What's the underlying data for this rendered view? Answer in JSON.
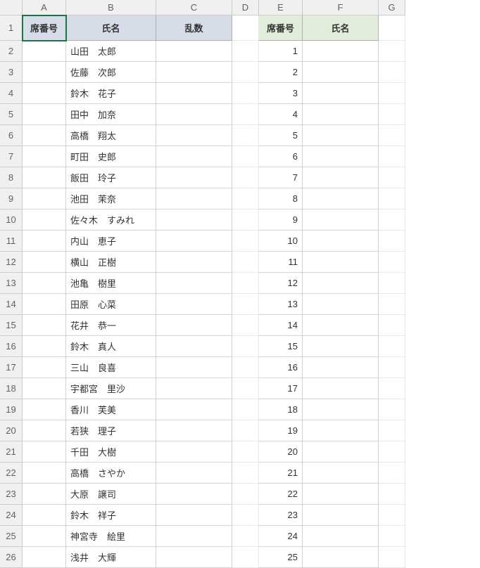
{
  "columns": [
    "A",
    "B",
    "C",
    "D",
    "E",
    "F",
    "G"
  ],
  "rowCount": 26,
  "colors": {
    "hdr1_bg": "#d6dce8",
    "hdr2_bg": "#e1edda",
    "grid_border": "#d4d4d4",
    "hdr_border": "#cccccc",
    "selection": "#217346",
    "rowcol_bg": "#f0f0f0",
    "rowcol_text": "#616161"
  },
  "selectedCell": "A1",
  "headers1": {
    "A": "席番号",
    "B": "氏名",
    "C": "乱数"
  },
  "headers2": {
    "E": "席番号",
    "F": "氏名"
  },
  "names": [
    "山田　太郎",
    "佐藤　次郎",
    "鈴木　花子",
    "田中　加奈",
    "高橋　翔太",
    "町田　史郎",
    "飯田　玲子",
    "池田　茉奈",
    "佐々木　すみれ",
    "内山　恵子",
    "横山　正樹",
    "池亀　樹里",
    "田原　心菜",
    "花井　恭一",
    "鈴木　真人",
    "三山　良喜",
    "宇都宮　里沙",
    "香川　芙美",
    "若狭　理子",
    "千田　大樹",
    "高橋　さやか",
    "大原　譲司",
    "鈴木　祥子",
    "神宮寺　絵里",
    "浅井　大輝"
  ],
  "seatNumbers": [
    1,
    2,
    3,
    4,
    5,
    6,
    7,
    8,
    9,
    10,
    11,
    12,
    13,
    14,
    15,
    16,
    17,
    18,
    19,
    20,
    21,
    22,
    23,
    24,
    25
  ]
}
